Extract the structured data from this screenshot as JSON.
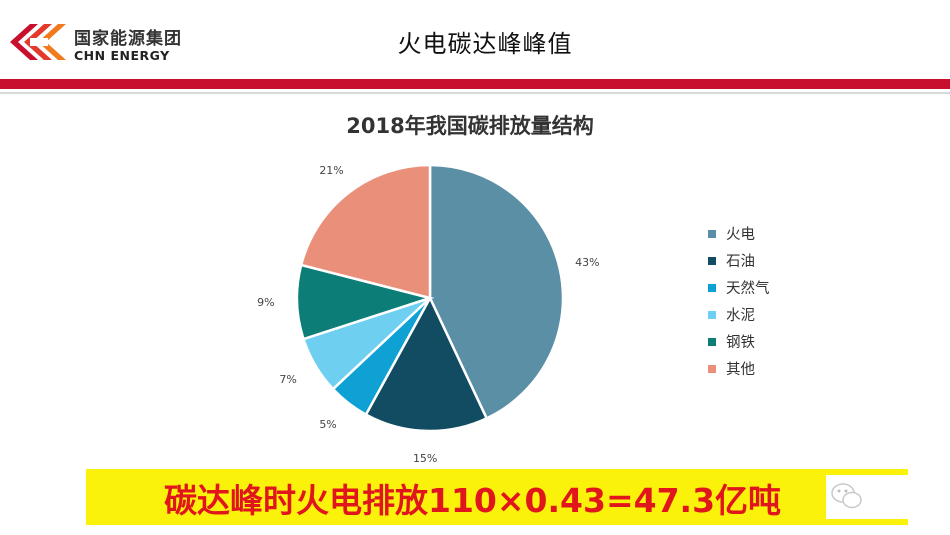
{
  "header": {
    "logo_cn": "国家能源集团",
    "logo_en": "CHN ENERGY",
    "slide_title": "火电碳达峰峰值"
  },
  "colors": {
    "brand_red": "#c8102e",
    "banner_bg": "#fbf20b",
    "banner_text": "#e0161c"
  },
  "chart_data": {
    "type": "pie",
    "title": "2018年我国碳排放量结构",
    "legend_position": "right",
    "slices": [
      {
        "name": "火电",
        "value": 43,
        "label": "43%",
        "color": "#5b8fa6"
      },
      {
        "name": "石油",
        "value": 15,
        "label": "15%",
        "color": "#124c63"
      },
      {
        "name": "天然气",
        "value": 5,
        "label": "5%",
        "color": "#0fa0d4"
      },
      {
        "name": "水泥",
        "value": 7,
        "label": "7%",
        "color": "#6fcff0"
      },
      {
        "name": "钢铁",
        "value": 9,
        "label": "9%",
        "color": "#0c7d77"
      },
      {
        "name": "其他",
        "value": 21,
        "label": "21%",
        "color": "#ea8f7a"
      }
    ]
  },
  "banner": {
    "text": "碳达峰时火电排放110×0.43=47.3亿吨"
  },
  "icons": {
    "logo": "chn-energy-logo",
    "watermark": "wechat-icon"
  }
}
